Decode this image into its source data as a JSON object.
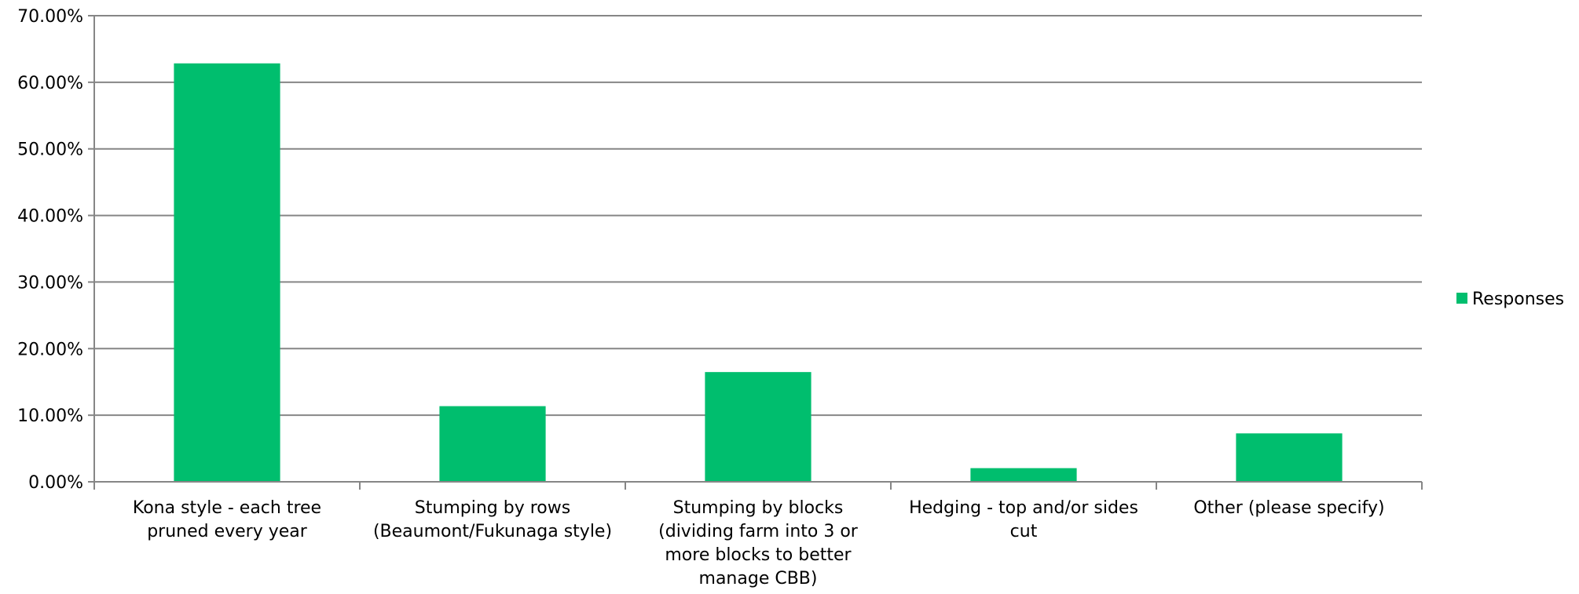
{
  "chart_data": {
    "type": "bar",
    "title": "",
    "xlabel": "",
    "ylabel": "",
    "categories": [
      [
        "Kona style - each tree",
        "pruned every year"
      ],
      [
        "Stumping by rows",
        "(Beaumont/Fukunaga style)"
      ],
      [
        "Stumping by blocks",
        "(dividing farm into 3 or",
        "more blocks to better",
        "manage CBB)"
      ],
      [
        "Hedging - top and/or sides",
        "cut"
      ],
      [
        "Other (please specify)"
      ]
    ],
    "series": [
      {
        "name": "Responses",
        "values": [
          0.6284,
          0.1136,
          0.1648,
          0.0205,
          0.0727
        ],
        "color": "#00be6e"
      }
    ],
    "ylim": [
      0,
      0.7
    ],
    "yticks": [
      0,
      0.1,
      0.2,
      0.3,
      0.4,
      0.5,
      0.6,
      0.7
    ],
    "ytick_labels": [
      "0.00%",
      "10.00%",
      "20.00%",
      "30.00%",
      "40.00%",
      "50.00%",
      "60.00%",
      "70.00%"
    ],
    "grid": true,
    "legend": "right"
  }
}
